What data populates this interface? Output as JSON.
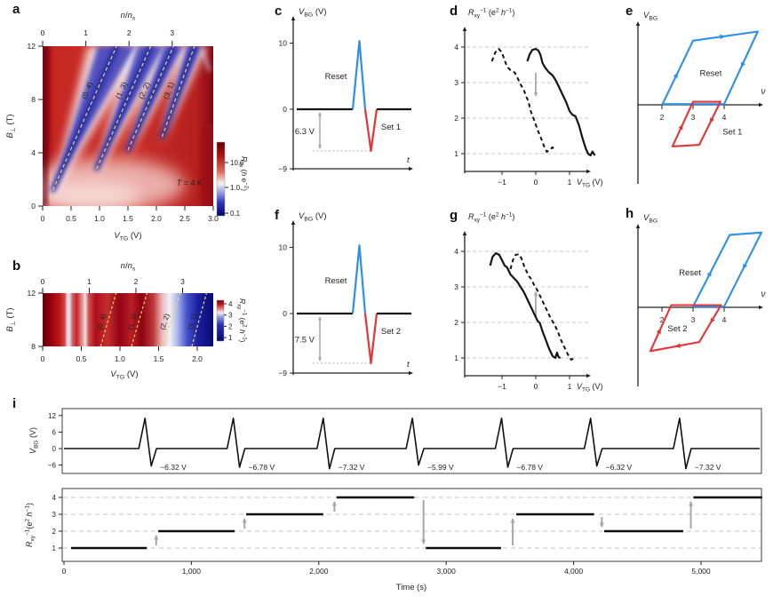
{
  "colors": {
    "blue": "#2e8fe8",
    "red": "#e33438",
    "gray_arrow": "#a8a8a8",
    "dash_yellow": "#e9dc62",
    "navy_label": "#1d2166",
    "grid_gray": "#c9c9c9",
    "curve_black": "#141414"
  },
  "chart_data": [
    {
      "panel_label": "a",
      "type": "heatmap",
      "variant": "a",
      "top_label": "*n*/*n*_{s}",
      "top_ticks": [
        "0",
        "1",
        "2",
        "3"
      ],
      "ylabel": "*B*_{⊥} (T)",
      "yticks": [
        "0",
        "4",
        "8",
        "12"
      ],
      "ylim": [
        0,
        12
      ],
      "xlabel": "*V*_{TG} (V)",
      "xticks": [
        "0",
        "0.5",
        "1.0",
        "1.5",
        "2.0",
        "2.5",
        "3.0"
      ],
      "xlim": [
        0,
        3
      ],
      "annotation": "*T* = 4 K",
      "line_labels": [
        "(0, 4)",
        "(1, 3)",
        "(2, 2)",
        "(3, 1)"
      ],
      "gap_lines_VB": [
        [
          0.18,
          1.2,
          1.3,
          12
        ],
        [
          0.95,
          2.8,
          1.9,
          12
        ],
        [
          1.5,
          4.2,
          2.3,
          12
        ],
        [
          2.1,
          5.2,
          2.67,
          12
        ]
      ],
      "colorbar": {
        "label": "*R*_{xx} (*h* e^{−2})",
        "ticks": [
          "10.0",
          "1.0",
          "0.1"
        ],
        "scale": "log"
      }
    },
    {
      "panel_label": "b",
      "type": "heatmap",
      "variant": "b",
      "top_label": "*n*/*n*_{s}",
      "top_ticks": [
        "0",
        "1",
        "2",
        "3"
      ],
      "ylabel": "*B*_{⊥} (T)",
      "yticks": [
        "12",
        "8"
      ],
      "ylim": [
        8,
        12
      ],
      "xlabel": "*V*_{TG} (V)",
      "xticks": [
        "0",
        "0.5",
        "1.0",
        "1.5",
        "2.0"
      ],
      "xlim": [
        0,
        2.2
      ],
      "line_labels": [
        "(0, 4)",
        "(1, 3)",
        "(2, 2)",
        "(3, 1)"
      ],
      "line_label_colors": [
        "#f0dc6a",
        "#f0dc6a",
        "#e6ecff",
        "#ccd5ff"
      ],
      "gap_lines_VB": [
        [
          0.75,
          8,
          0.95,
          12
        ],
        [
          1.15,
          8,
          1.35,
          12
        ],
        [
          1.55,
          8,
          1.78,
          12
        ],
        [
          1.93,
          8,
          2.12,
          12
        ]
      ],
      "colorbar": {
        "label": "*R*_{xy}^{−1} (e^{2} *h*^{−1})",
        "ticks": [
          "4",
          "3",
          "2",
          "1"
        ]
      }
    },
    {
      "panel_label": "c",
      "type": "pulse",
      "ylabel": "*V*_{BG} (V)",
      "xlabel": "*t*",
      "yticks": [
        "10",
        "0",
        "−9"
      ],
      "reset_label": "Reset",
      "set_label": "Set 1",
      "delta_label": "6.3 V",
      "peak_V": 10.3,
      "trough_V": -6.3
    },
    {
      "panel_label": "d",
      "type": "curves",
      "ylabel": "*R*_{xy}^{−1} (e^{2} *h*^{−1})",
      "yticks": [
        1,
        2,
        3,
        4
      ],
      "xlabel": "*V*_{TG} (V)",
      "xticks": [
        -1,
        0,
        1
      ],
      "xtick_labels": [
        "−1",
        "0",
        "1"
      ],
      "series": [
        {
          "style": "dashed",
          "points": [
            [
              -1.3,
              3.6
            ],
            [
              -1.2,
              3.85
            ],
            [
              -1.1,
              3.95
            ],
            [
              -1.0,
              3.85
            ],
            [
              -0.95,
              3.7
            ],
            [
              -0.85,
              3.45
            ],
            [
              -0.75,
              3.35
            ],
            [
              -0.62,
              3.28
            ],
            [
              -0.55,
              3.15
            ],
            [
              -0.45,
              2.95
            ],
            [
              -0.35,
              2.78
            ],
            [
              -0.28,
              2.6
            ],
            [
              -0.22,
              2.48
            ],
            [
              -0.15,
              2.2
            ],
            [
              -0.05,
              1.95
            ],
            [
              0.05,
              1.68
            ],
            [
              0.15,
              1.45
            ],
            [
              0.25,
              1.2
            ],
            [
              0.33,
              1.05
            ],
            [
              0.42,
              1.12
            ],
            [
              0.5,
              1.18
            ],
            [
              0.55,
              1.08
            ]
          ]
        },
        {
          "style": "solid",
          "points": [
            [
              -0.25,
              3.6
            ],
            [
              -0.18,
              3.8
            ],
            [
              -0.1,
              3.92
            ],
            [
              0,
              3.95
            ],
            [
              0.08,
              3.9
            ],
            [
              0.14,
              3.78
            ],
            [
              0.2,
              3.55
            ],
            [
              0.28,
              3.42
            ],
            [
              0.38,
              3.3
            ],
            [
              0.5,
              3.2
            ],
            [
              0.6,
              3.05
            ],
            [
              0.7,
              2.85
            ],
            [
              0.8,
              2.65
            ],
            [
              0.9,
              2.45
            ],
            [
              1.0,
              2.2
            ],
            [
              1.08,
              2.1
            ],
            [
              1.18,
              2.05
            ],
            [
              1.28,
              1.8
            ],
            [
              1.38,
              1.45
            ],
            [
              1.48,
              1.15
            ],
            [
              1.55,
              1.0
            ],
            [
              1.62,
              0.95
            ],
            [
              1.68,
              1.06
            ],
            [
              1.75,
              0.95
            ]
          ]
        }
      ],
      "arrow": {
        "x": 0,
        "from": 3.35,
        "to": 2.5
      }
    },
    {
      "panel_label": "e",
      "type": "loop",
      "ylabel": "*V*_{BG}",
      "xlabel": "*ν*",
      "xticks": [
        "2",
        "3",
        "4"
      ],
      "loops": [
        {
          "name": "Reset",
          "color": "blue",
          "points": [
            [
              2.02,
              0.01
            ],
            [
              3.0,
              0.85
            ],
            [
              5.08,
              0.97
            ],
            [
              4.0,
              0.01
            ]
          ],
          "label_pos": [
            3.57,
            0.42
          ],
          "label_anchor": "middle",
          "arrow_segs": [
            0,
            1,
            2
          ]
        },
        {
          "name": "Set 1",
          "color": "red",
          "points": [
            [
              3.88,
              0.04
            ],
            [
              3.2,
              -0.53
            ],
            [
              2.34,
              -0.55
            ],
            [
              3.0,
              0.04
            ]
          ],
          "label_pos": [
            3.95,
            -0.36
          ],
          "label_anchor": "start",
          "arrow_segs": [
            0,
            2
          ]
        }
      ]
    },
    {
      "panel_label": "f",
      "type": "pulse",
      "ylabel": "*V*_{BG} (V)",
      "xlabel": "*t*",
      "yticks": [
        "10",
        "0",
        "−9"
      ],
      "reset_label": "Reset",
      "set_label": "Set 2",
      "delta_label": "7.5 V",
      "peak_V": 10.3,
      "trough_V": -7.5
    },
    {
      "panel_label": "g",
      "type": "curves",
      "ylabel": "*R*_{xy}^{−1} (e^{2} *h*^{−1})",
      "yticks": [
        1,
        2,
        3,
        4
      ],
      "xlabel": "*V*_{TG} (V)",
      "xticks": [
        -1,
        0,
        1
      ],
      "xtick_labels": [
        "−1",
        "0",
        "1"
      ],
      "series": [
        {
          "style": "solid",
          "points": [
            [
              -1.35,
              3.6
            ],
            [
              -1.28,
              3.85
            ],
            [
              -1.18,
              3.95
            ],
            [
              -1.08,
              3.9
            ],
            [
              -1.0,
              3.75
            ],
            [
              -0.92,
              3.6
            ],
            [
              -0.85,
              3.55
            ],
            [
              -0.75,
              3.35
            ],
            [
              -0.65,
              3.25
            ],
            [
              -0.55,
              3.15
            ],
            [
              -0.45,
              3.0
            ],
            [
              -0.35,
              2.85
            ],
            [
              -0.25,
              2.65
            ],
            [
              -0.15,
              2.45
            ],
            [
              -0.05,
              2.25
            ],
            [
              0.05,
              2.05
            ],
            [
              0.12,
              1.98
            ],
            [
              0.2,
              1.75
            ],
            [
              0.3,
              1.5
            ],
            [
              0.4,
              1.25
            ],
            [
              0.5,
              1.05
            ],
            [
              0.58,
              1.0
            ],
            [
              0.63,
              1.15
            ],
            [
              0.68,
              1.02
            ],
            [
              0.73,
              1.0
            ]
          ]
        },
        {
          "style": "dashed",
          "points": [
            [
              -0.75,
              3.5
            ],
            [
              -0.68,
              3.75
            ],
            [
              -0.6,
              3.9
            ],
            [
              -0.5,
              3.92
            ],
            [
              -0.42,
              3.8
            ],
            [
              -0.35,
              3.6
            ],
            [
              -0.28,
              3.45
            ],
            [
              -0.2,
              3.3
            ],
            [
              -0.12,
              3.2
            ],
            [
              -0.05,
              3.05
            ],
            [
              0.05,
              2.9
            ],
            [
              0.15,
              2.7
            ],
            [
              0.25,
              2.5
            ],
            [
              0.35,
              2.3
            ],
            [
              0.45,
              2.1
            ],
            [
              0.55,
              1.95
            ],
            [
              0.65,
              1.75
            ],
            [
              0.75,
              1.5
            ],
            [
              0.85,
              1.3
            ],
            [
              0.95,
              1.1
            ],
            [
              1.05,
              0.95
            ],
            [
              1.15,
              1.0
            ]
          ]
        }
      ],
      "arrow": {
        "x": 0,
        "from": 2.1,
        "to": 2.98
      }
    },
    {
      "panel_label": "h",
      "type": "loop",
      "ylabel": "*V*_{BG}",
      "xlabel": "*ν*",
      "xticks": [
        "2",
        "3",
        "4"
      ],
      "loops": [
        {
          "name": "Reset",
          "color": "blue",
          "points": [
            [
              3.0,
              0.01
            ],
            [
              4.18,
              0.96
            ],
            [
              5.2,
              0.99
            ],
            [
              4.0,
              0.01
            ]
          ],
          "label_pos": [
            2.9,
            0.46
          ],
          "label_anchor": "middle",
          "arrow_segs": [
            0,
            2
          ]
        },
        {
          "name": "Set 2",
          "color": "red",
          "points": [
            [
              3.9,
              0.03
            ],
            [
              3.2,
              -0.46
            ],
            [
              1.63,
              -0.58
            ],
            [
              2.3,
              0.03
            ]
          ],
          "label_pos": [
            2.5,
            -0.28
          ],
          "label_anchor": "middle",
          "arrow_segs": [
            0,
            1,
            2
          ]
        }
      ]
    },
    {
      "panel_label": "i",
      "type": "timeseries",
      "xlabel": "Time (s)",
      "xticks_t": [
        0,
        1000,
        2000,
        3000,
        4000,
        5000
      ],
      "xtick_labels": [
        "0",
        "1,000",
        "2,000",
        "3,000",
        "4,000",
        "5,000"
      ],
      "top": {
        "ylabel": "*V*_{BG} (V)",
        "yticks": [
          12,
          6,
          0,
          -6
        ],
        "ytick_labels": [
          "12",
          "6",
          "0",
          "−6"
        ],
        "peak_V": 11,
        "pulses": [
          {
            "t": 664,
            "V": -6.32,
            "label": "−6.32 V"
          },
          {
            "t": 1357,
            "V": -6.78,
            "label": "−6.78 V"
          },
          {
            "t": 2063,
            "V": -7.32,
            "label": "−7.32 V"
          },
          {
            "t": 2762,
            "V": -5.99,
            "label": "−5.99 V"
          },
          {
            "t": 3462,
            "V": -6.78,
            "label": "−6.78 V"
          },
          {
            "t": 4161,
            "V": -6.32,
            "label": "−6.32 V"
          },
          {
            "t": 4860,
            "V": -7.32,
            "label": "−7.32 V"
          }
        ]
      },
      "bottom": {
        "ylabel": "*R*_{xy}^{−1}(e^{2} *h*^{−1})",
        "yticks": [
          4,
          3,
          2,
          1
        ],
        "steps": [
          {
            "t0": 55,
            "t1": 650,
            "level": 1
          },
          {
            "t0": 740,
            "t1": 1340,
            "level": 2
          },
          {
            "t0": 1430,
            "t1": 2035,
            "level": 3
          },
          {
            "t0": 2140,
            "t1": 2750,
            "level": 4
          },
          {
            "t0": 2840,
            "t1": 3430,
            "level": 1
          },
          {
            "t0": 3550,
            "t1": 4160,
            "level": 3
          },
          {
            "t0": 4240,
            "t1": 4860,
            "level": 2
          },
          {
            "t0": 4940,
            "t1": 5480,
            "level": 4
          }
        ],
        "transitions": [
          {
            "t": 724,
            "from": 1,
            "to": 2
          },
          {
            "t": 1417,
            "from": 2,
            "to": 3
          },
          {
            "t": 2123,
            "from": 3,
            "to": 4
          },
          {
            "t": 2822,
            "from": 4,
            "to": 1
          },
          {
            "t": 3522,
            "from": 1,
            "to": 3
          },
          {
            "t": 4221,
            "from": 3,
            "to": 2
          },
          {
            "t": 4920,
            "from": 2,
            "to": 4
          }
        ]
      }
    }
  ]
}
